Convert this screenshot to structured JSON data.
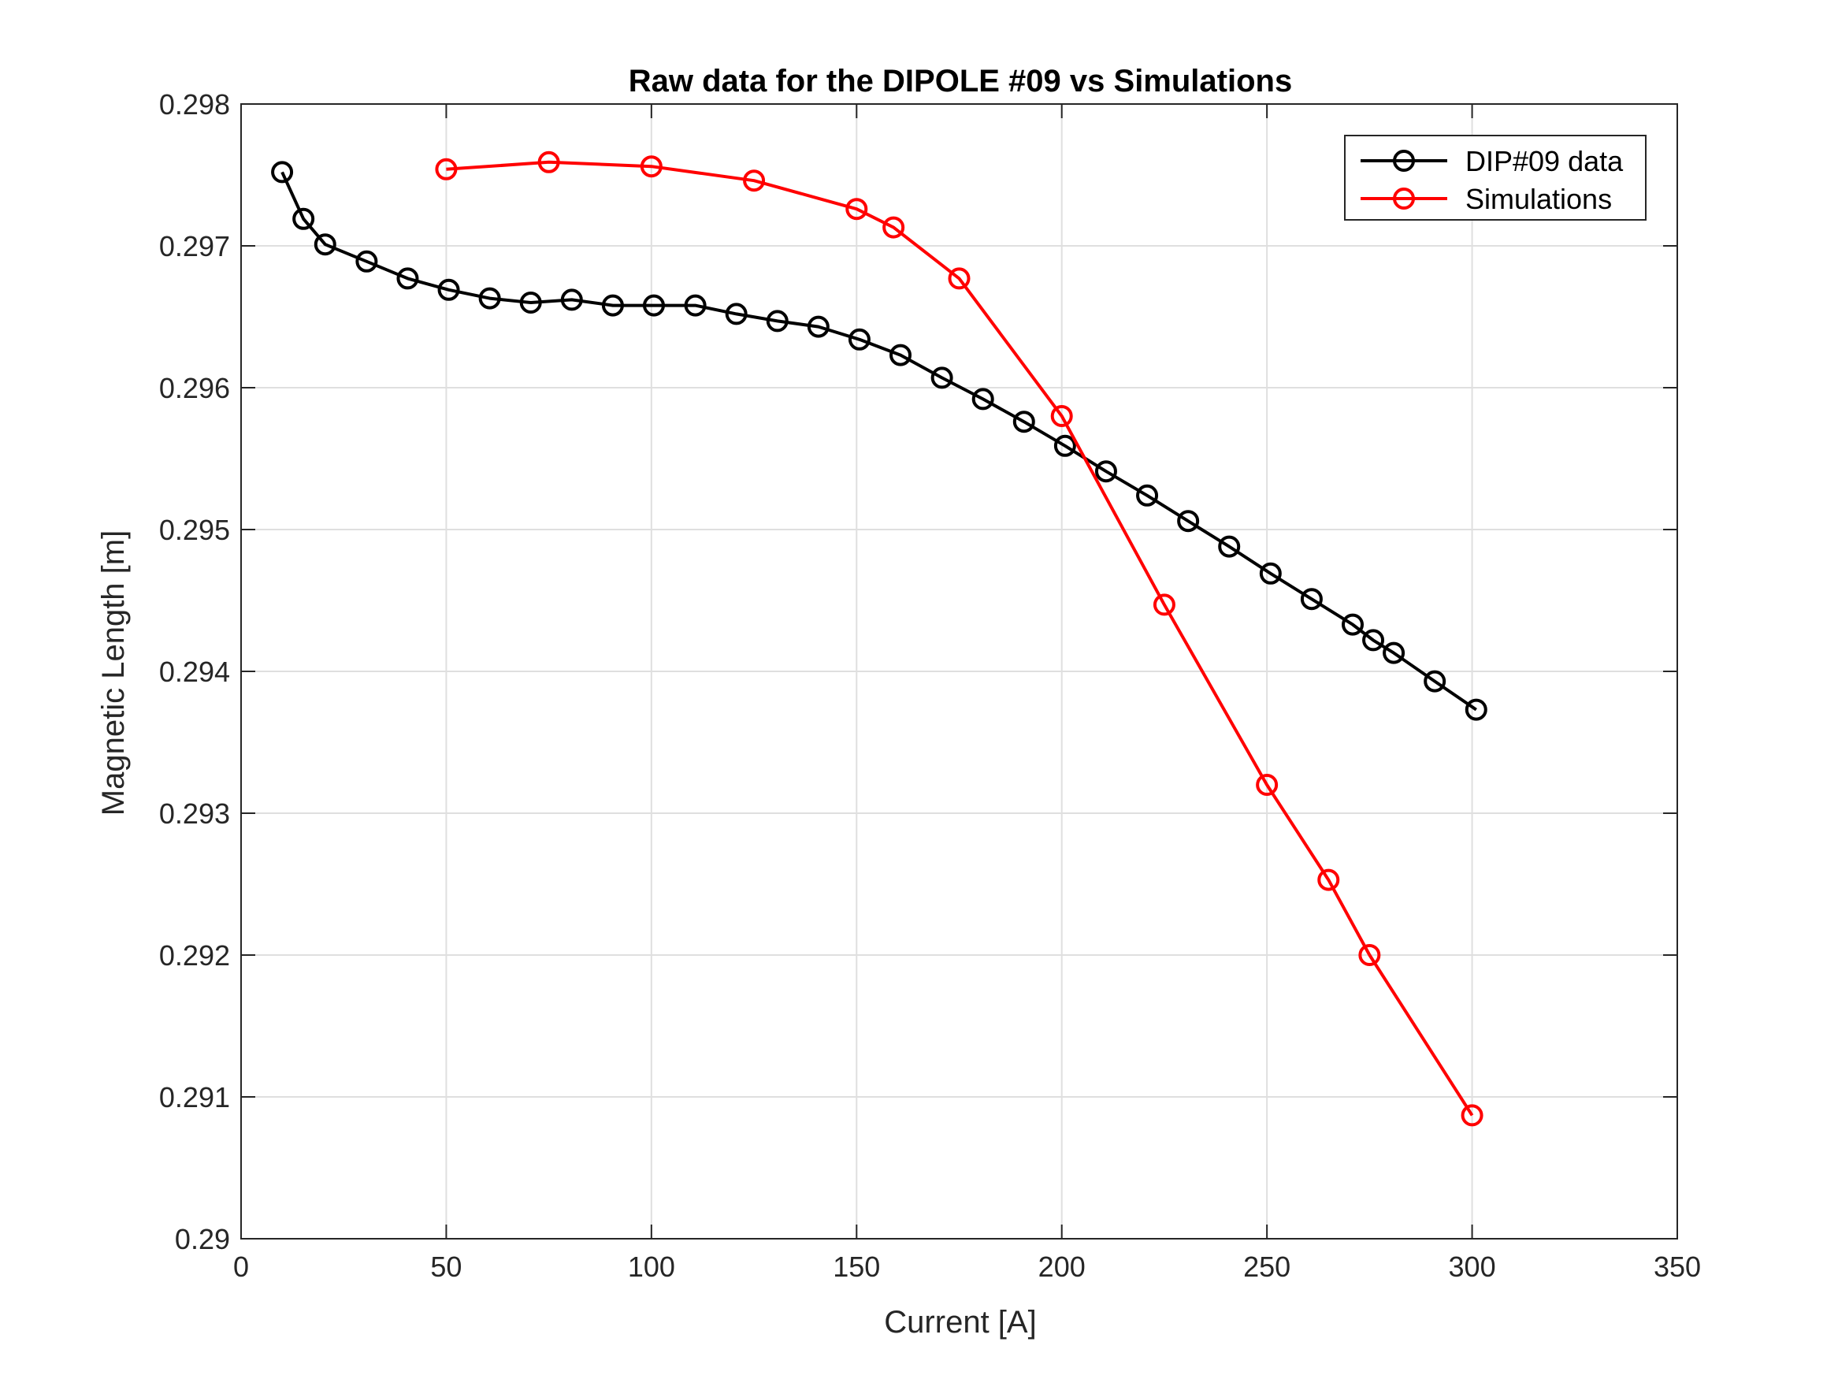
{
  "chart_data": {
    "type": "line",
    "title": "Raw data for the DIPOLE #09 vs Simulations",
    "xlabel": "Current [A]",
    "ylabel": "Magnetic Length [m]",
    "xlim": [
      0,
      350
    ],
    "ylim": [
      0.29,
      0.298
    ],
    "xticks": [
      0,
      50,
      100,
      150,
      200,
      250,
      300,
      350
    ],
    "yticks": [
      0.29,
      0.291,
      0.292,
      0.293,
      0.294,
      0.295,
      0.296,
      0.297,
      0.298
    ],
    "xtick_labels": [
      "0",
      "50",
      "100",
      "150",
      "200",
      "250",
      "300",
      "350"
    ],
    "ytick_labels": [
      "0.29",
      "0.291",
      "0.292",
      "0.293",
      "0.294",
      "0.295",
      "0.296",
      "0.297",
      "0.298"
    ],
    "grid": true,
    "legend_position": "top-right",
    "marker": "circle",
    "series": [
      {
        "name": "DIP#09 data",
        "color": "#000000",
        "x": [
          10,
          15.2,
          20.5,
          30.6,
          40.6,
          50.6,
          60.6,
          70.6,
          80.6,
          90.6,
          100.6,
          110.7,
          120.7,
          130.7,
          140.7,
          150.7,
          160.7,
          170.8,
          180.8,
          190.8,
          200.8,
          210.8,
          220.8,
          230.8,
          240.8,
          250.9,
          260.9,
          270.9,
          275.9,
          280.9,
          290.9,
          301.0
        ],
        "y": [
          0.29752,
          0.29719,
          0.29701,
          0.29689,
          0.29677,
          0.29669,
          0.29663,
          0.2966,
          0.29662,
          0.29658,
          0.29658,
          0.29658,
          0.29652,
          0.29647,
          0.29643,
          0.29634,
          0.29623,
          0.29607,
          0.29592,
          0.29576,
          0.29559,
          0.29541,
          0.29524,
          0.29506,
          0.29488,
          0.29469,
          0.29451,
          0.29433,
          0.29422,
          0.29413,
          0.29393,
          0.29373
        ]
      },
      {
        "name": "Simulations",
        "color": "#ff0000",
        "x": [
          50,
          75,
          100,
          125,
          150,
          159,
          175,
          200,
          225,
          250,
          265,
          275,
          300
        ],
        "y": [
          0.29754,
          0.29759,
          0.29756,
          0.29746,
          0.29726,
          0.29713,
          0.29677,
          0.2958,
          0.29447,
          0.2932,
          0.29253,
          0.292,
          0.29087
        ]
      }
    ]
  }
}
